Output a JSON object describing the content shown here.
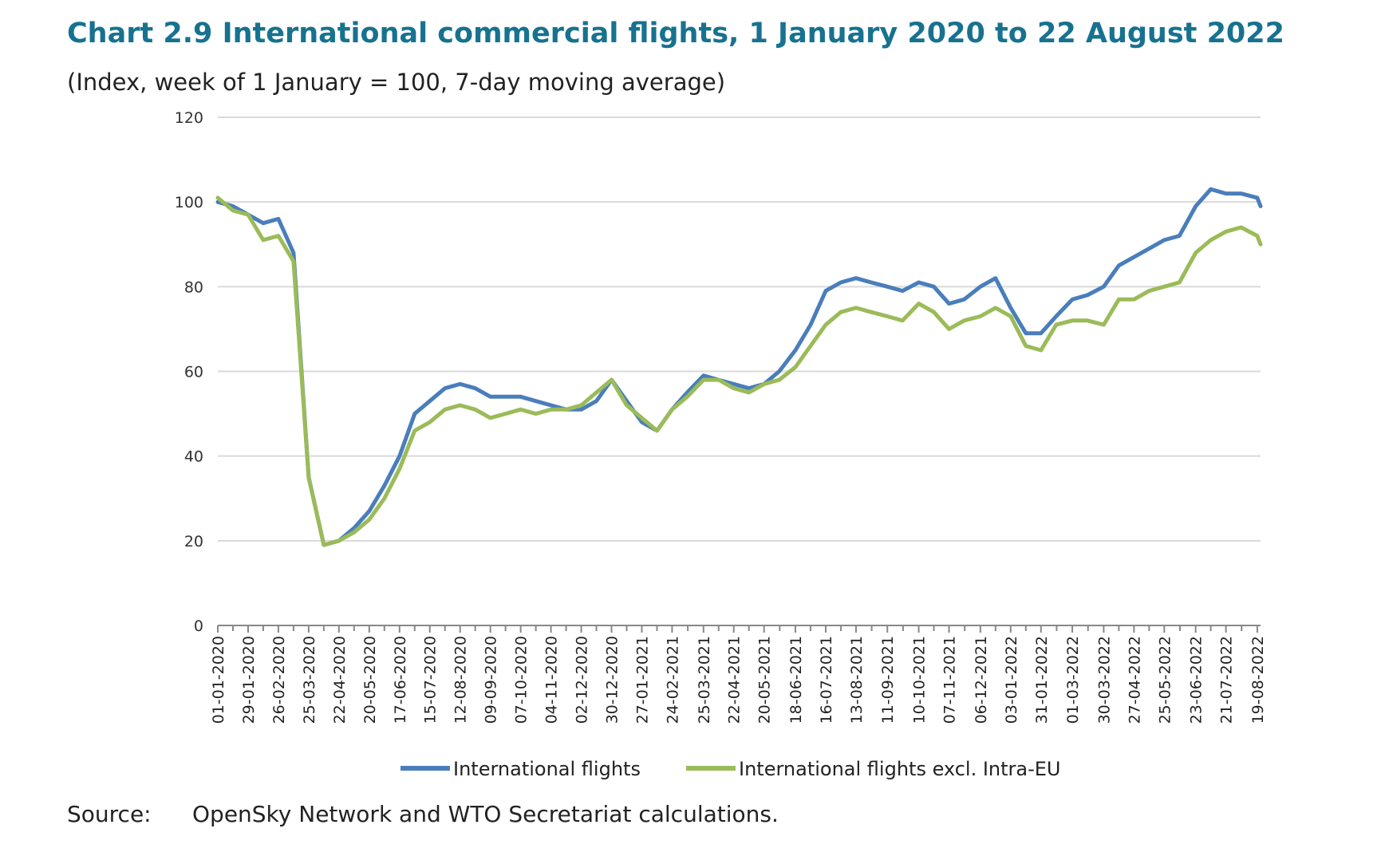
{
  "chart_data": {
    "type": "line",
    "title": "Chart 2.9 International commercial flights, 1 January 2020 to 22 August 2022",
    "subtitle": "(Index, week of 1 January = 100, 7-day moving average)",
    "ylim": [
      0,
      120
    ],
    "yticks": [
      "0",
      "20",
      "40",
      "60",
      "80",
      "100",
      "120"
    ],
    "grid": true,
    "legend_position": "bottom",
    "x_tick_labels": [
      "01-01-2020",
      "29-01-2020",
      "26-02-2020",
      "25-03-2020",
      "22-04-2020",
      "20-05-2020",
      "17-06-2020",
      "15-07-2020",
      "12-08-2020",
      "09-09-2020",
      "07-10-2020",
      "04-11-2020",
      "02-12-2020",
      "30-12-2020",
      "27-01-2021",
      "24-02-2021",
      "25-03-2021",
      "22-04-2021",
      "20-05-2021",
      "18-06-2021",
      "16-07-2021",
      "13-08-2021",
      "11-09-2021",
      "10-10-2021",
      "07-11-2021",
      "06-12-2021",
      "03-01-2022",
      "31-01-2022",
      "01-03-2022",
      "30-03-2022",
      "27-04-2022",
      "25-05-2022",
      "23-06-2022",
      "21-07-2022",
      "19-08-2022"
    ],
    "x": [
      "2020-01-01",
      "2020-01-15",
      "2020-01-29",
      "2020-02-12",
      "2020-02-26",
      "2020-03-11",
      "2020-03-25",
      "2020-04-08",
      "2020-04-22",
      "2020-05-06",
      "2020-05-20",
      "2020-06-03",
      "2020-06-17",
      "2020-07-01",
      "2020-07-15",
      "2020-07-29",
      "2020-08-12",
      "2020-08-26",
      "2020-09-09",
      "2020-09-23",
      "2020-10-07",
      "2020-10-21",
      "2020-11-04",
      "2020-11-18",
      "2020-12-02",
      "2020-12-16",
      "2020-12-30",
      "2021-01-13",
      "2021-01-27",
      "2021-02-10",
      "2021-02-24",
      "2021-03-10",
      "2021-03-25",
      "2021-04-08",
      "2021-04-22",
      "2021-05-06",
      "2021-05-20",
      "2021-06-03",
      "2021-06-18",
      "2021-07-02",
      "2021-07-16",
      "2021-07-30",
      "2021-08-13",
      "2021-08-27",
      "2021-09-11",
      "2021-09-25",
      "2021-10-10",
      "2021-10-24",
      "2021-11-07",
      "2021-11-21",
      "2021-12-06",
      "2021-12-20",
      "2022-01-03",
      "2022-01-17",
      "2022-01-31",
      "2022-02-14",
      "2022-03-01",
      "2022-03-15",
      "2022-03-30",
      "2022-04-13",
      "2022-04-27",
      "2022-05-11",
      "2022-05-25",
      "2022-06-08",
      "2022-06-23",
      "2022-07-07",
      "2022-07-21",
      "2022-08-04",
      "2022-08-19",
      "2022-08-22"
    ],
    "series": [
      {
        "name": "International flights",
        "color": "#4a7ebb",
        "values": [
          100,
          99,
          97,
          95,
          96,
          88,
          35,
          19,
          20,
          23,
          27,
          33,
          40,
          50,
          53,
          56,
          57,
          56,
          54,
          54,
          54,
          53,
          52,
          51,
          51,
          53,
          58,
          53,
          48,
          46,
          51,
          55,
          59,
          58,
          57,
          56,
          57,
          60,
          65,
          71,
          79,
          81,
          82,
          81,
          80,
          79,
          81,
          80,
          76,
          77,
          80,
          82,
          75,
          69,
          69,
          73,
          77,
          78,
          80,
          85,
          87,
          89,
          91,
          92,
          99,
          103,
          102,
          102,
          101,
          99
        ],
        "data_labels": []
      },
      {
        "name": "International flights excl. Intra-EU",
        "color": "#9bbb59",
        "values": [
          101,
          98,
          97,
          91,
          92,
          86,
          35,
          19,
          20,
          22,
          25,
          30,
          37,
          46,
          48,
          51,
          52,
          51,
          49,
          50,
          51,
          50,
          51,
          51,
          52,
          55,
          58,
          52,
          49,
          46,
          51,
          54,
          58,
          58,
          56,
          55,
          57,
          58,
          61,
          66,
          71,
          74,
          75,
          74,
          73,
          72,
          76,
          74,
          70,
          72,
          73,
          75,
          73,
          66,
          65,
          71,
          72,
          72,
          71,
          77,
          77,
          79,
          80,
          81,
          88,
          91,
          93,
          94,
          92,
          90
        ],
        "data_labels": []
      }
    ]
  },
  "source": {
    "label": "Source:",
    "text": "OpenSky Network and WTO Secretariat calculations."
  }
}
